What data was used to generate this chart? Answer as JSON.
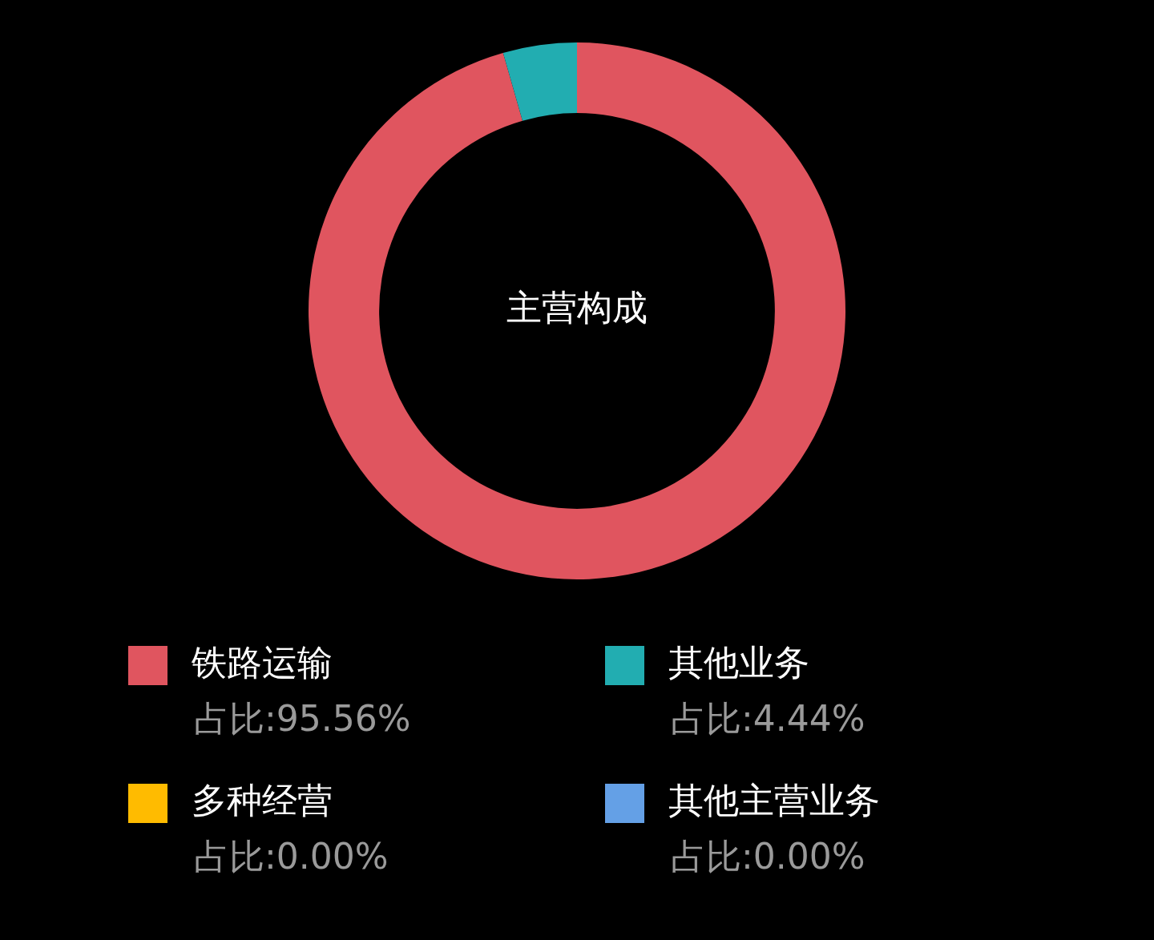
{
  "chart_data": {
    "type": "donut",
    "title": "主营构成",
    "categories": [
      "铁路运输",
      "其他业务",
      "多种经营",
      "其他主营业务"
    ],
    "values": [
      95.56,
      4.44,
      0.0,
      0.0
    ],
    "colors": [
      "#e0555f",
      "#22adb1",
      "#ffbb00",
      "#64a0e6"
    ],
    "value_labels": [
      "占比:95.56%",
      "占比:4.44%",
      "占比:0.00%",
      "占比:0.00%"
    ],
    "legend": "bottom"
  }
}
